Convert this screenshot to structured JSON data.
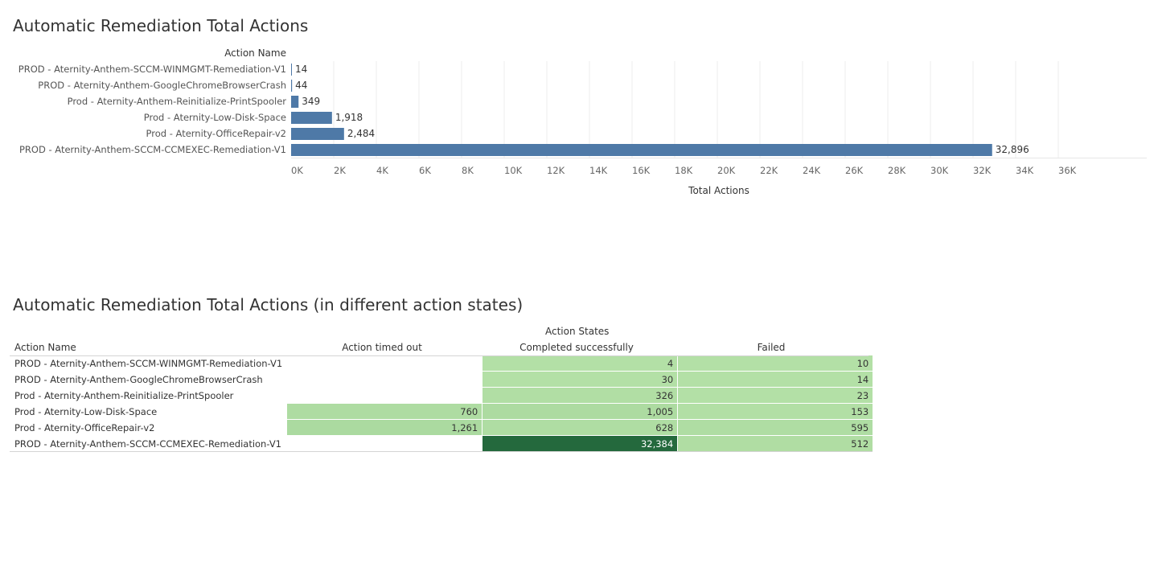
{
  "chart_data": [
    {
      "type": "bar",
      "orientation": "horizontal",
      "title": "Automatic Remediation Total Actions",
      "ylabel": "Action Name",
      "xlabel": "Total Actions",
      "categories": [
        "PROD - Aternity-Anthem-SCCM-WINMGMT-Remediation-V1",
        "PROD - Aternity-Anthem-GoogleChromeBrowserCrash",
        "Prod - Aternity-Anthem-Reinitialize-PrintSpooler",
        "Prod - Aternity-Low-Disk-Space",
        "Prod - Aternity-OfficeRepair-v2",
        "PROD - Aternity-Anthem-SCCM-CCMEXEC-Remediation-V1"
      ],
      "values": [
        14,
        44,
        349,
        1918,
        2484,
        32896
      ],
      "value_labels": [
        "14",
        "44",
        "349",
        "1,918",
        "2,484",
        "32,896"
      ],
      "xlim": [
        0,
        36000
      ],
      "ticks": [
        0,
        2000,
        4000,
        6000,
        8000,
        10000,
        12000,
        14000,
        16000,
        18000,
        20000,
        22000,
        24000,
        26000,
        28000,
        30000,
        32000,
        34000,
        36000
      ],
      "tick_labels": [
        "0K",
        "2K",
        "4K",
        "6K",
        "8K",
        "10K",
        "12K",
        "14K",
        "16K",
        "18K",
        "20K",
        "22K",
        "24K",
        "26K",
        "28K",
        "30K",
        "32K",
        "34K",
        "36K"
      ],
      "grid": true,
      "bar_color": "#4e79a7"
    },
    {
      "type": "heatmap",
      "title": "Automatic Remediation Total Actions (in different action states)",
      "column_group_label": "Action States",
      "row_header": "Action Name",
      "columns": [
        "Action timed out",
        "Completed successfully",
        "Failed"
      ],
      "rows": [
        {
          "name": "PROD - Aternity-Anthem-SCCM-WINMGMT-Remediation-V1",
          "values": [
            null,
            4,
            10
          ],
          "labels": [
            "",
            "4",
            "10"
          ]
        },
        {
          "name": "PROD - Aternity-Anthem-GoogleChromeBrowserCrash",
          "values": [
            null,
            30,
            14
          ],
          "labels": [
            "",
            "30",
            "14"
          ]
        },
        {
          "name": "Prod - Aternity-Anthem-Reinitialize-PrintSpooler",
          "values": [
            null,
            326,
            23
          ],
          "labels": [
            "",
            "326",
            "23"
          ]
        },
        {
          "name": "Prod - Aternity-Low-Disk-Space",
          "values": [
            760,
            1005,
            153
          ],
          "labels": [
            "760",
            "1,005",
            "153"
          ]
        },
        {
          "name": "Prod - Aternity-OfficeRepair-v2",
          "values": [
            1261,
            628,
            595
          ],
          "labels": [
            "1,261",
            "628",
            "595"
          ]
        },
        {
          "name": "PROD - Aternity-Anthem-SCCM-CCMEXEC-Remediation-V1",
          "values": [
            null,
            32384,
            512
          ],
          "labels": [
            "",
            "32,384",
            "512"
          ]
        }
      ],
      "colors": {
        "low": "#b3e0a6",
        "high": "#24693d",
        "dark_text": "#333333",
        "light_text": "#ffffff"
      }
    }
  ]
}
